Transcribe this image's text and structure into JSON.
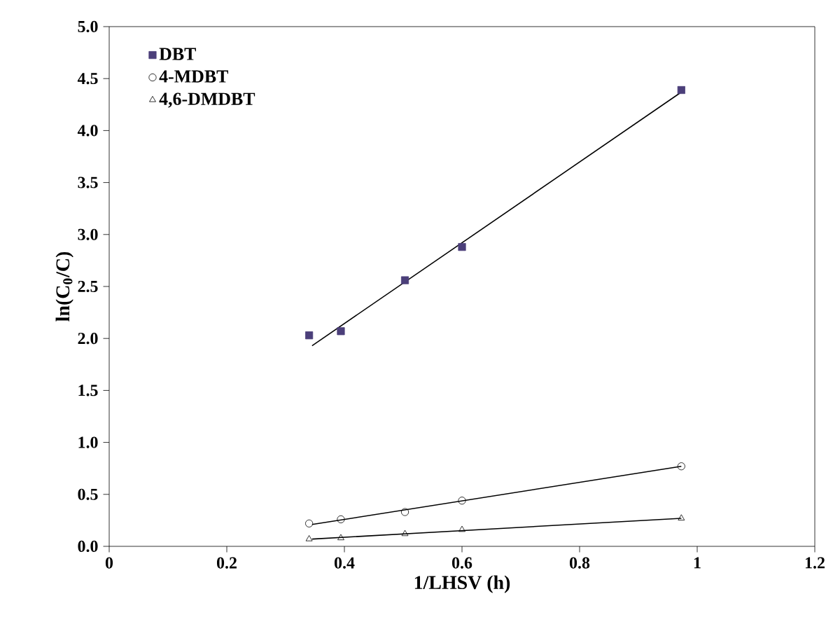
{
  "chart_data": {
    "type": "scatter",
    "xlabel": "1/LHSV (h)",
    "ylabel": "ln(C$_{0}$/C)",
    "xlim": [
      0,
      1.2
    ],
    "ylim": [
      0,
      5
    ],
    "xticks": [
      0,
      0.2,
      0.4,
      0.6,
      0.8,
      1,
      1.2
    ],
    "yticks": [
      {
        "value": 0,
        "label": "0.0"
      },
      {
        "value": 0.5,
        "label": "0.5"
      },
      {
        "value": 1,
        "label": "1.0"
      },
      {
        "value": 1.5,
        "label": "1.5"
      },
      {
        "value": 2,
        "label": "2.0"
      },
      {
        "value": 2.5,
        "label": "2.5"
      },
      {
        "value": 3,
        "label": "3.0"
      },
      {
        "value": 3.5,
        "label": "3.5"
      },
      {
        "value": 4,
        "label": "4.0"
      },
      {
        "value": 4.5,
        "label": "4.5"
      },
      {
        "value": 5,
        "label": "5.0"
      }
    ],
    "legend": "top left",
    "grid": false,
    "series": [
      {
        "name": "DBT",
        "marker": "square",
        "color": "#4b3f7a",
        "x": [
          0.34,
          0.394,
          0.503,
          0.6,
          0.973
        ],
        "values": [
          2.03,
          2.07,
          2.56,
          2.88,
          4.39
        ]
      },
      {
        "name": "4-MDBT",
        "marker": "circle",
        "color": "#000000",
        "x": [
          0.34,
          0.394,
          0.503,
          0.6,
          0.973
        ],
        "values": [
          0.22,
          0.26,
          0.33,
          0.44,
          0.77
        ]
      },
      {
        "name": "4,6-DMDBT",
        "marker": "triangle",
        "color": "#000000",
        "x": [
          0.34,
          0.394,
          0.503,
          0.6,
          0.973
        ],
        "values": [
          0.07,
          0.08,
          0.12,
          0.16,
          0.27
        ]
      },
      {
        "type": "line",
        "color": "#000000",
        "x": [
          0.345,
          0.973
        ],
        "values": [
          1.93,
          4.37
        ]
      },
      {
        "type": "line",
        "color": "#000000",
        "x": [
          0.345,
          0.973
        ],
        "values": [
          0.21,
          0.77
        ]
      },
      {
        "type": "line",
        "color": "#000000",
        "x": [
          0.345,
          0.973
        ],
        "values": [
          0.07,
          0.27
        ]
      }
    ]
  }
}
